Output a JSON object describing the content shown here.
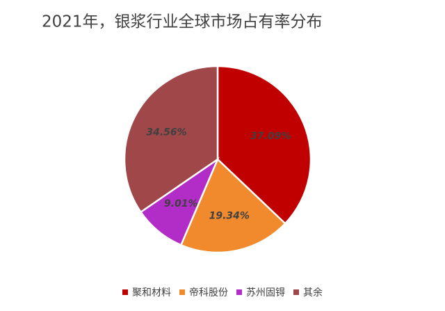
{
  "chart_data": {
    "type": "pie",
    "title": "2021年，银浆行业全球市场占有率分布",
    "categories": [
      "聚和材料",
      "帝科股份",
      "苏州固锝",
      "其余"
    ],
    "values": [
      37.09,
      19.34,
      9.01,
      34.56
    ],
    "value_labels": [
      "37.09%",
      "19.34%",
      "9.01%",
      "34.56%"
    ],
    "colors": [
      "#c00000",
      "#f08a2c",
      "#b22cc8",
      "#a0474a"
    ],
    "legend": "bottom"
  }
}
